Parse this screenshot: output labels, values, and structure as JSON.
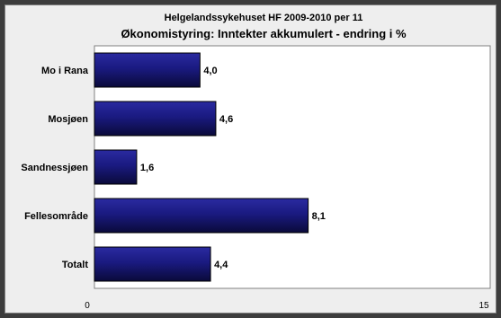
{
  "chart_data": {
    "type": "bar",
    "orientation": "horizontal",
    "title": "Helgelandssykehuset HF 2009-2010 per 11",
    "subtitle": "Økonomistyring: Inntekter akkumulert - endring i %",
    "categories": [
      "Mo i Rana",
      "Mosjøen",
      "Sandnessjøen",
      "Fellesområde",
      "Totalt"
    ],
    "values": [
      4.0,
      4.6,
      1.6,
      8.1,
      4.4
    ],
    "value_labels": [
      "4,0",
      "4,6",
      "1,6",
      "8,1",
      "4,4"
    ],
    "xlim": [
      0,
      15
    ],
    "x_ticks": [
      "0",
      "15"
    ],
    "grid": false,
    "legend": "none",
    "colors": {
      "bar": "#1a1a80",
      "bar_light": "#2a2aa0",
      "bar_dark": "#0a0a3a",
      "plot_background": "#ffffff",
      "chart_background": "#eeeeee",
      "outer_background": "#3c3c3c"
    }
  }
}
